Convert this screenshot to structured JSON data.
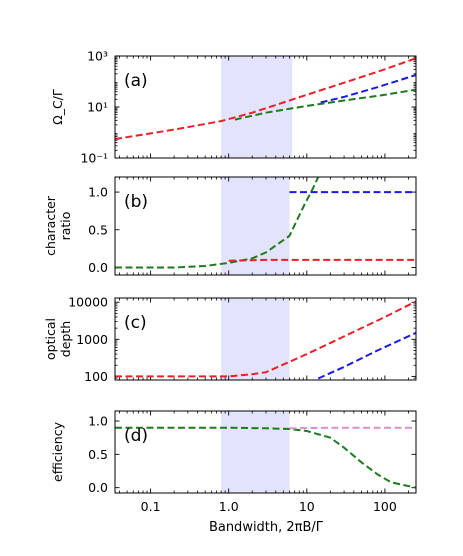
{
  "figure": {
    "xlabel": "Bandwidth, 2πB/Γ",
    "xticks": [
      "0.1",
      "1.0",
      "10",
      "100"
    ]
  },
  "colors": {
    "red": "#e8202a",
    "blue": "#1a1ae6",
    "green": "#1f7a1f",
    "pink": "#d98fd1",
    "band": "#e3e4fb"
  },
  "chart_data": [
    {
      "type": "line",
      "panel_label": "(a)",
      "ylabel": "Ω_C/Γ",
      "yscale": "log",
      "ylim": [
        0.1,
        1000
      ],
      "yticks": [
        {
          "value": 0.1,
          "label": "10⁻¹"
        },
        {
          "value": 10,
          "label": "10¹"
        },
        {
          "value": 1000,
          "label": "10³"
        }
      ],
      "xscale": "log",
      "xlim": [
        0.035,
        250
      ],
      "shaded_band": [
        0.8,
        6.5
      ],
      "series": [
        {
          "color": "red",
          "x": [
            0.035,
            0.2,
            0.8,
            2,
            5,
            10,
            30,
            100,
            250
          ],
          "y": [
            0.55,
            1.3,
            2.8,
            6,
            15,
            30,
            90,
            300,
            820
          ]
        },
        {
          "color": "blue",
          "x": [
            15,
            30,
            80,
            250
          ],
          "y": [
            15,
            25,
            60,
            180
          ]
        },
        {
          "color": "green",
          "x": [
            1.2,
            3,
            10,
            30,
            100,
            250
          ],
          "y": [
            3.2,
            6,
            11,
            18,
            30,
            48
          ]
        }
      ]
    },
    {
      "type": "line",
      "panel_label": "(b)",
      "ylabel": "character ratio",
      "yscale": "linear",
      "ylim": [
        -0.1,
        1.2
      ],
      "yticks": [
        {
          "value": 0,
          "label": "0.0"
        },
        {
          "value": 0.5,
          "label": "0.5"
        },
        {
          "value": 1,
          "label": "1.0"
        }
      ],
      "xscale": "log",
      "xlim": [
        0.035,
        250
      ],
      "shaded_band": [
        0.8,
        6
      ],
      "series": [
        {
          "color": "green",
          "x": [
            0.035,
            0.2,
            0.5,
            1,
            2,
            3,
            6,
            9,
            12,
            14
          ],
          "y": [
            0,
            0,
            0.02,
            0.06,
            0.12,
            0.2,
            0.42,
            0.8,
            1.05,
            1.2
          ]
        },
        {
          "color": "red",
          "x": [
            1,
            3,
            10,
            30,
            100,
            250
          ],
          "y": [
            0.09,
            0.1,
            0.1,
            0.1,
            0.1,
            0.1
          ]
        },
        {
          "color": "blue",
          "x": [
            6,
            20,
            100,
            250
          ],
          "y": [
            1,
            1,
            1,
            1
          ]
        }
      ]
    },
    {
      "type": "line",
      "panel_label": "(c)",
      "ylabel": "optical depth",
      "yscale": "log",
      "ylim": [
        80,
        13000
      ],
      "yticks": [
        {
          "value": 100,
          "label": "100"
        },
        {
          "value": 1000,
          "label": "1000"
        },
        {
          "value": 10000,
          "label": "10000"
        }
      ],
      "xscale": "log",
      "xlim": [
        0.035,
        250
      ],
      "shaded_band": [
        0.8,
        6
      ],
      "series": [
        {
          "color": "red",
          "x": [
            0.035,
            0.3,
            1,
            2,
            3,
            10,
            30,
            100,
            250
          ],
          "y": [
            100,
            100,
            100,
            115,
            130,
            400,
            1200,
            4000,
            10500
          ]
        },
        {
          "color": "blue",
          "x": [
            14,
            30,
            80,
            250
          ],
          "y": [
            88,
            180,
            500,
            1500
          ]
        }
      ]
    },
    {
      "type": "line",
      "panel_label": "(d)",
      "ylabel": "efficiency",
      "yscale": "linear",
      "ylim": [
        -0.08,
        1.15
      ],
      "yticks": [
        {
          "value": 0,
          "label": "0.0"
        },
        {
          "value": 0.5,
          "label": "0.5"
        },
        {
          "value": 1,
          "label": "1.0"
        }
      ],
      "xscale": "log",
      "xlim": [
        0.035,
        250
      ],
      "shaded_band": [
        0.8,
        6
      ],
      "series": [
        {
          "color": "green",
          "x": [
            0.035,
            0.3,
            1,
            3,
            6,
            10,
            20,
            30,
            50,
            80,
            120,
            250
          ],
          "y": [
            0.9,
            0.9,
            0.9,
            0.89,
            0.88,
            0.85,
            0.75,
            0.6,
            0.38,
            0.2,
            0.08,
            0
          ]
        },
        {
          "color": "pink",
          "x": [
            6,
            20,
            100,
            250
          ],
          "y": [
            0.89,
            0.9,
            0.9,
            0.9
          ]
        }
      ]
    }
  ]
}
